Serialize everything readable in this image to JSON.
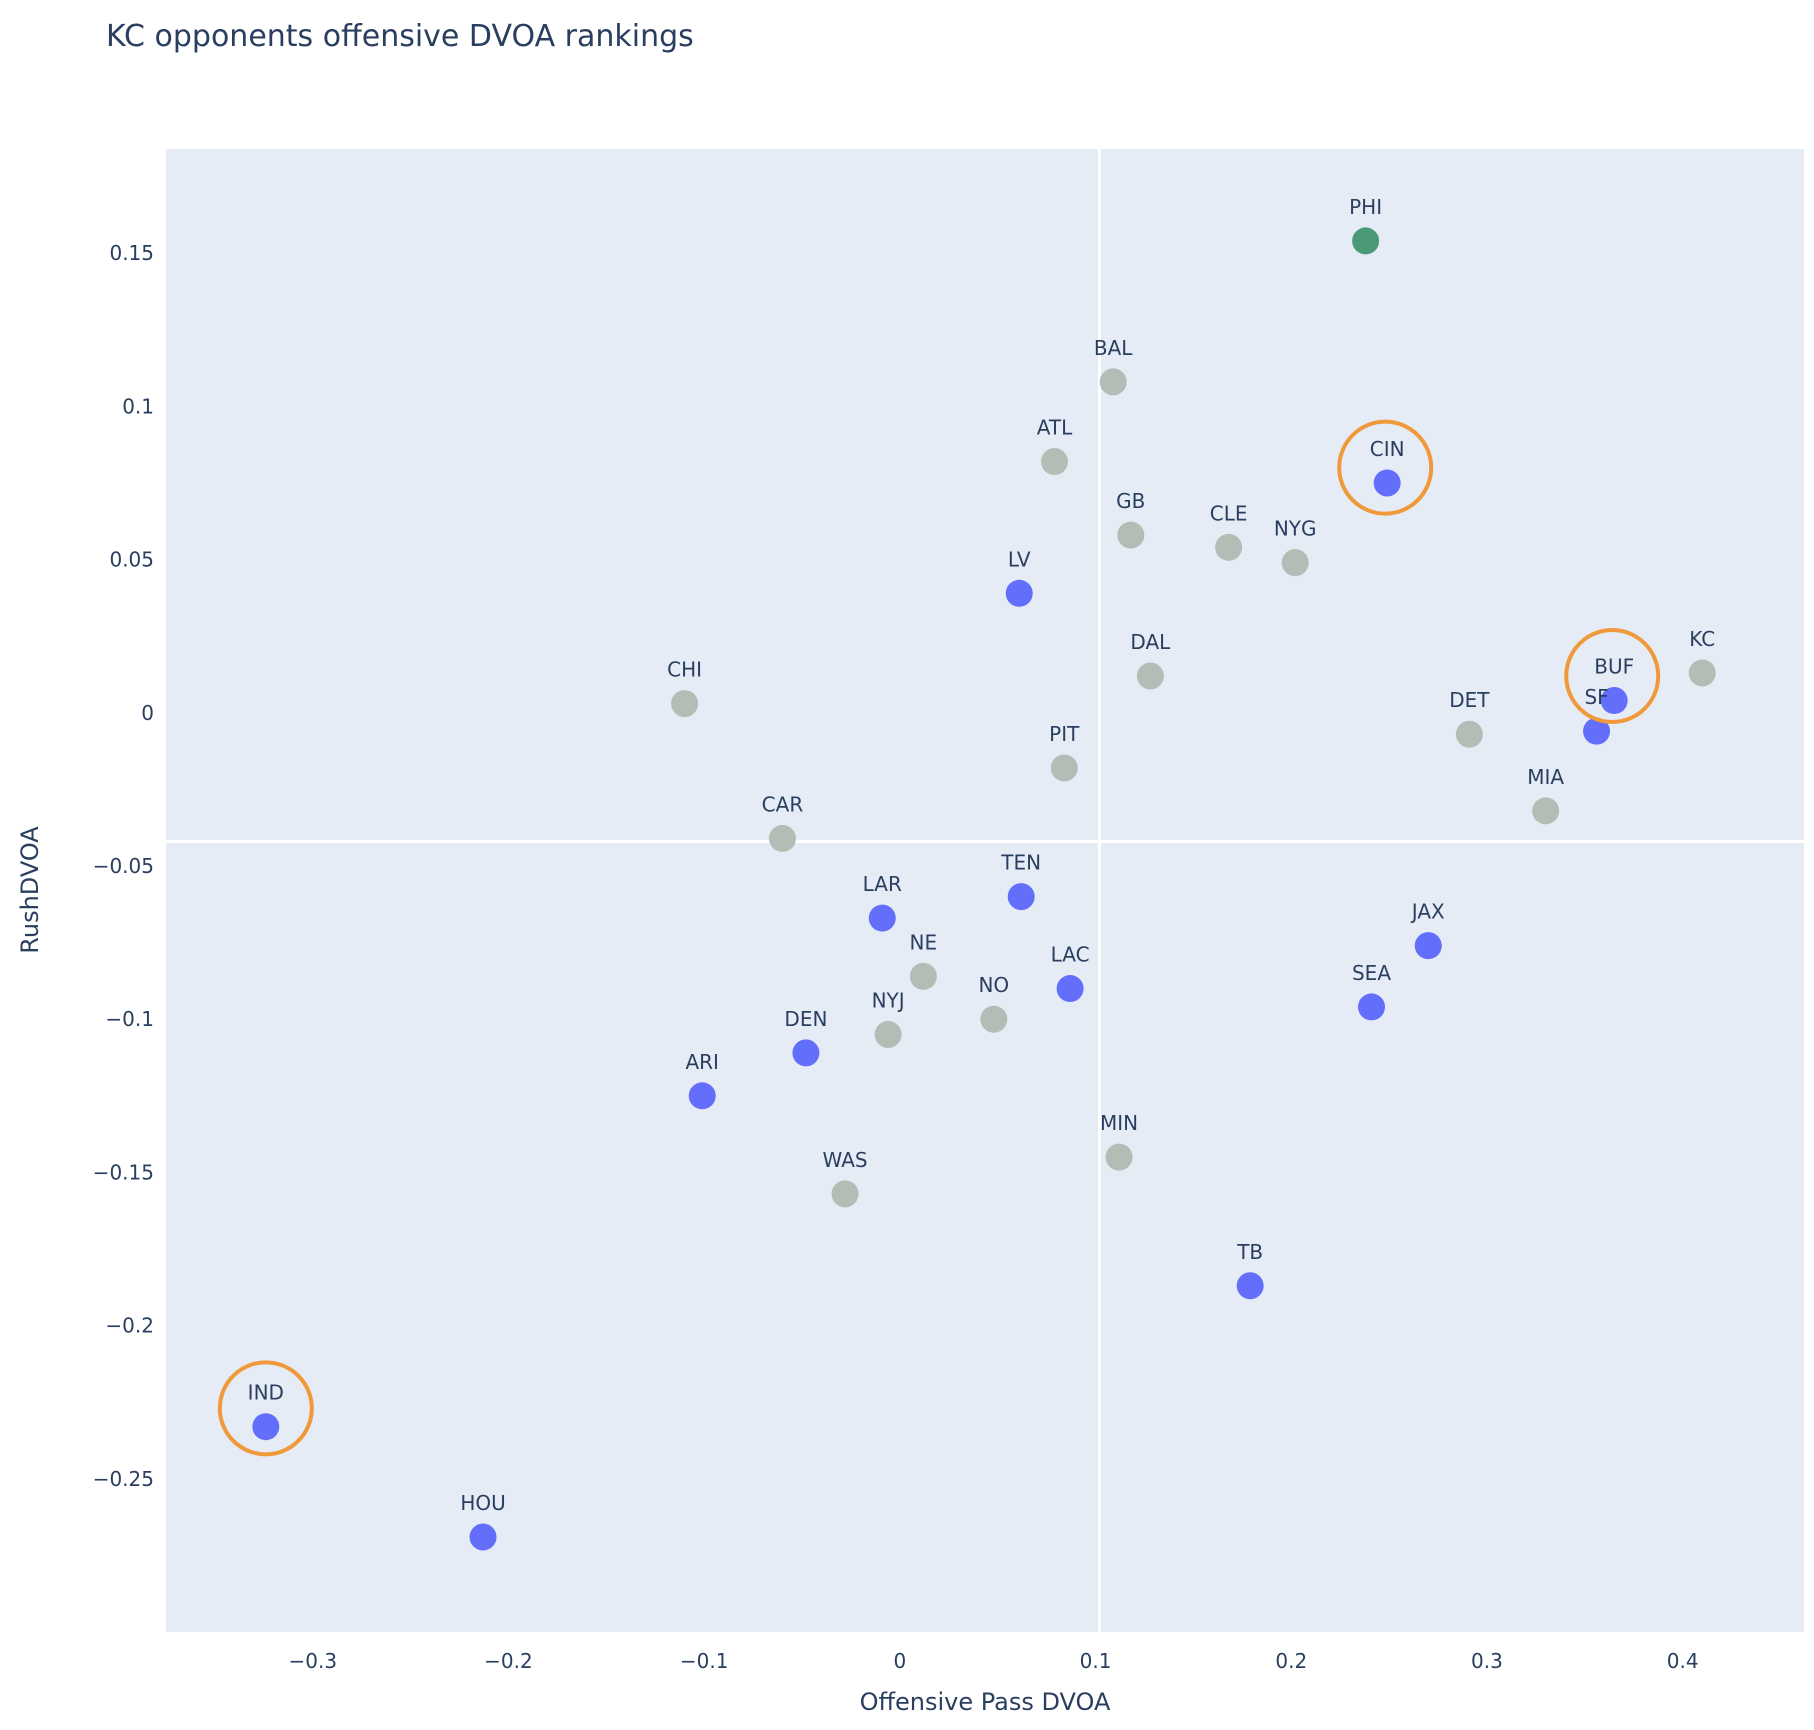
{
  "chart_data": {
    "type": "scatter",
    "title": "KC opponents offensive DVOA rankings",
    "xlabel": "Offensive Pass DVOA",
    "ylabel": "RushDVOA",
    "xlim": [
      -0.375,
      0.462
    ],
    "ylim": [
      -0.3,
      0.184
    ],
    "x_ticks": [
      -0.3,
      -0.2,
      -0.1,
      0,
      0.1,
      0.2,
      0.3,
      0.4
    ],
    "x_tick_labels": [
      "−0.3",
      "−0.2",
      "−0.1",
      "0",
      "0.1",
      "0.2",
      "0.3",
      "0.4"
    ],
    "y_ticks": [
      0.15,
      0.1,
      0.05,
      0,
      -0.05,
      -0.1,
      -0.15,
      -0.2,
      -0.25
    ],
    "y_tick_labels": [
      "0.15",
      "0.1",
      "0.05",
      "0",
      "−0.05",
      "−0.1",
      "−0.15",
      "−0.2",
      "−0.25"
    ],
    "grid": false,
    "reference_lines": {
      "x": 0.102,
      "y": -0.042
    },
    "colors": {
      "background": "#e5ecf6",
      "opponent": "#636efa",
      "other": "#b4bcb6",
      "highlight": "#4a9a78",
      "circle": "#f0993a"
    },
    "points": [
      {
        "team": "PHI",
        "x": 0.238,
        "y": 0.154,
        "group": "highlight"
      },
      {
        "team": "BAL",
        "x": 0.109,
        "y": 0.108,
        "group": "other"
      },
      {
        "team": "ATL",
        "x": 0.079,
        "y": 0.082,
        "group": "other"
      },
      {
        "team": "CIN",
        "x": 0.249,
        "y": 0.075,
        "group": "opponent"
      },
      {
        "team": "GB",
        "x": 0.118,
        "y": 0.058,
        "group": "other"
      },
      {
        "team": "CLE",
        "x": 0.168,
        "y": 0.054,
        "group": "other"
      },
      {
        "team": "NYG",
        "x": 0.202,
        "y": 0.049,
        "group": "other"
      },
      {
        "team": "LV",
        "x": 0.061,
        "y": 0.039,
        "group": "opponent"
      },
      {
        "team": "DAL",
        "x": 0.128,
        "y": 0.012,
        "group": "other"
      },
      {
        "team": "KC",
        "x": 0.41,
        "y": 0.013,
        "group": "other"
      },
      {
        "team": "BUF",
        "x": 0.365,
        "y": 0.004,
        "group": "opponent"
      },
      {
        "team": "SF",
        "x": 0.356,
        "y": -0.006,
        "group": "opponent"
      },
      {
        "team": "DET",
        "x": 0.291,
        "y": -0.007,
        "group": "other"
      },
      {
        "team": "CHI",
        "x": -0.11,
        "y": 0.003,
        "group": "other"
      },
      {
        "team": "PIT",
        "x": 0.084,
        "y": -0.018,
        "group": "other"
      },
      {
        "team": "MIA",
        "x": 0.33,
        "y": -0.032,
        "group": "other"
      },
      {
        "team": "CAR",
        "x": -0.06,
        "y": -0.041,
        "group": "other"
      },
      {
        "team": "TEN",
        "x": 0.062,
        "y": -0.06,
        "group": "opponent"
      },
      {
        "team": "LAR",
        "x": -0.009,
        "y": -0.067,
        "group": "opponent"
      },
      {
        "team": "JAX",
        "x": 0.27,
        "y": -0.076,
        "group": "opponent"
      },
      {
        "team": "NE",
        "x": 0.012,
        "y": -0.086,
        "group": "other"
      },
      {
        "team": "LAC",
        "x": 0.087,
        "y": -0.09,
        "group": "opponent"
      },
      {
        "team": "SEA",
        "x": 0.241,
        "y": -0.096,
        "group": "opponent"
      },
      {
        "team": "NO",
        "x": 0.048,
        "y": -0.1,
        "group": "other"
      },
      {
        "team": "NYJ",
        "x": -0.006,
        "y": -0.105,
        "group": "other"
      },
      {
        "team": "DEN",
        "x": -0.048,
        "y": -0.111,
        "group": "opponent"
      },
      {
        "team": "ARI",
        "x": -0.101,
        "y": -0.125,
        "group": "opponent"
      },
      {
        "team": "MIN",
        "x": 0.112,
        "y": -0.145,
        "group": "other"
      },
      {
        "team": "WAS",
        "x": -0.028,
        "y": -0.157,
        "group": "other"
      },
      {
        "team": "TB",
        "x": 0.179,
        "y": -0.187,
        "group": "opponent"
      },
      {
        "team": "IND",
        "x": -0.324,
        "y": -0.233,
        "group": "opponent"
      },
      {
        "team": "HOU",
        "x": -0.213,
        "y": -0.269,
        "group": "opponent"
      }
    ],
    "circled": [
      {
        "team": "CIN",
        "x": 0.248,
        "y": 0.08
      },
      {
        "team": "BUF",
        "x": 0.364,
        "y": 0.012
      },
      {
        "team": "IND",
        "x": -0.324,
        "y": -0.227
      }
    ]
  }
}
